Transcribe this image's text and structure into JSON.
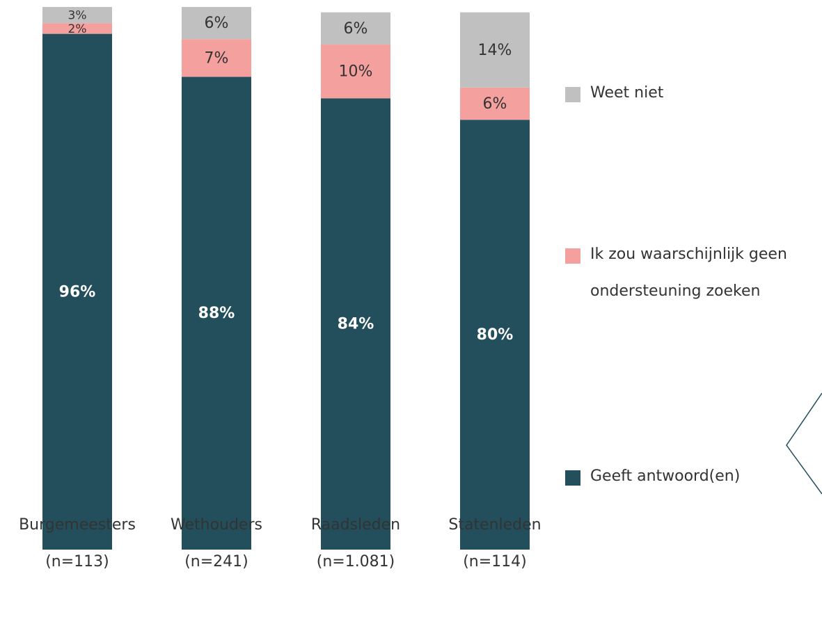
{
  "chart_data": {
    "type": "stacked_bar",
    "categories": [
      "Burgemeesters",
      "Wethouders",
      "Raadsleden",
      "Statenleden"
    ],
    "category_notes": [
      "(n=113)",
      "(n=241)",
      "(n=1.081)",
      "(n=114)"
    ],
    "ylim": [
      0,
      101
    ],
    "series": [
      {
        "name": "Geeft antwoord(en)",
        "color": "#234f5c",
        "values": [
          96,
          88,
          84,
          80
        ],
        "value_labels": [
          "96%",
          "88%",
          "84%",
          "80%"
        ]
      },
      {
        "name": "Ik zou waarschijnlijk geen ondersteuning zoeken",
        "color": "#f4a09e",
        "values": [
          2,
          7,
          10,
          6
        ],
        "value_labels": [
          "2%",
          "7%",
          "10%",
          "6%"
        ]
      },
      {
        "name": "Weet niet",
        "color": "#c0c0c0",
        "values": [
          3,
          6,
          6,
          14
        ],
        "value_labels": [
          "3%",
          "6%",
          "6%",
          "14%"
        ]
      }
    ],
    "legend": "right"
  }
}
